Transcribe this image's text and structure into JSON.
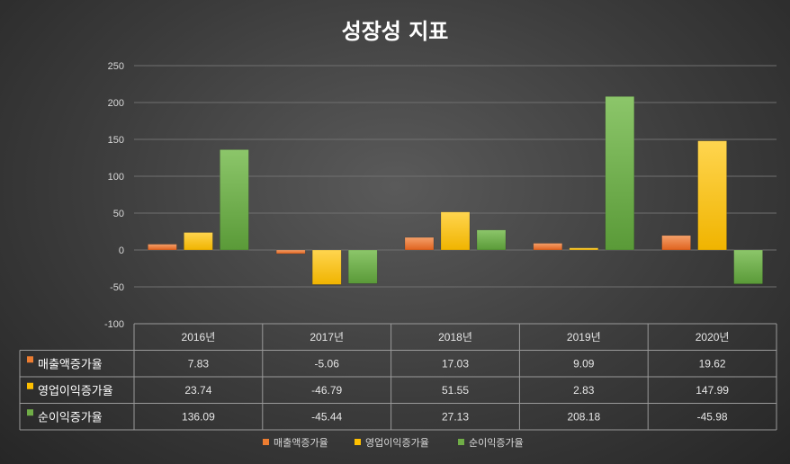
{
  "chart_data": {
    "type": "bar",
    "title": "성장성 지표",
    "categories": [
      "2016년",
      "2017년",
      "2018년",
      "2019년",
      "2020년"
    ],
    "ylim": [
      -100,
      250
    ],
    "yticks": [
      -100,
      -50,
      0,
      50,
      100,
      150,
      200,
      250
    ],
    "grid": true,
    "legend_position": "bottom",
    "series": [
      {
        "name": "매출액증가율",
        "color": "#ed7d31",
        "values": [
          7.83,
          -5.06,
          17.03,
          9.09,
          19.62
        ],
        "labels": [
          "7.83",
          "-5.06",
          "17.03",
          "9.09",
          "19.62"
        ]
      },
      {
        "name": "영업이익증가율",
        "color": "#ffc000",
        "values": [
          23.74,
          -46.79,
          51.55,
          2.83,
          147.99
        ],
        "labels": [
          "23.74",
          "-46.79",
          "51.55",
          "2.83",
          "147.99"
        ]
      },
      {
        "name": "순이익증가율",
        "color": "#70ad47",
        "values": [
          136.09,
          -45.44,
          27.13,
          208.18,
          -45.98
        ],
        "labels": [
          "136.09",
          "-45.44",
          "27.13",
          "208.18",
          "-45.98"
        ]
      }
    ]
  }
}
